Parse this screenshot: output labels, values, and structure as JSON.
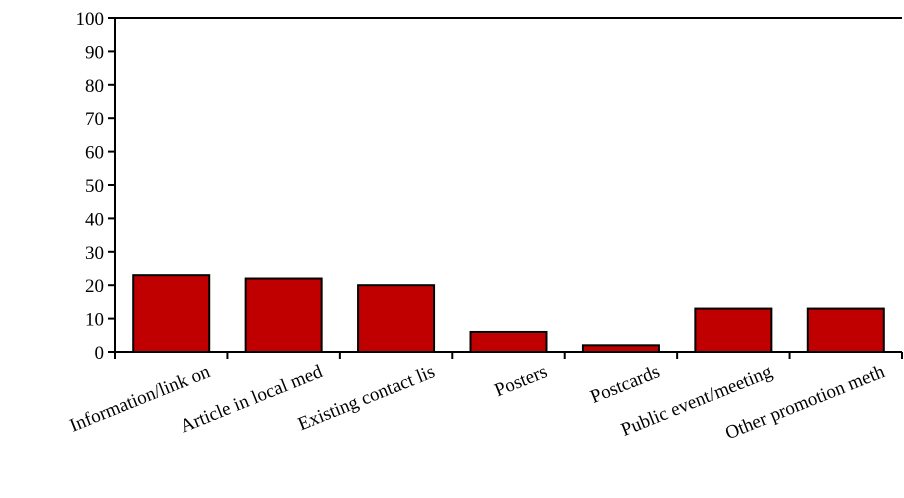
{
  "chart_data": {
    "type": "bar",
    "title": "",
    "xlabel": "",
    "ylabel": "",
    "categories": [
      "Information/link on",
      "Article in local med",
      "Existing contact lis",
      "Posters",
      "Postcards",
      "Public event/meeting",
      "Other promotion meth"
    ],
    "values": [
      23,
      22,
      20,
      6,
      2,
      13,
      13
    ],
    "ylim": [
      0,
      100
    ],
    "yticks": [
      0,
      10,
      20,
      30,
      40,
      50,
      60,
      70,
      80,
      90,
      100
    ],
    "ytick_labels": [
      "0",
      "10",
      "20",
      "30",
      "40",
      "50",
      "60",
      "70",
      "80",
      "90",
      "100"
    ],
    "bar_color": "#c00000",
    "grid": false,
    "legend": "none"
  }
}
